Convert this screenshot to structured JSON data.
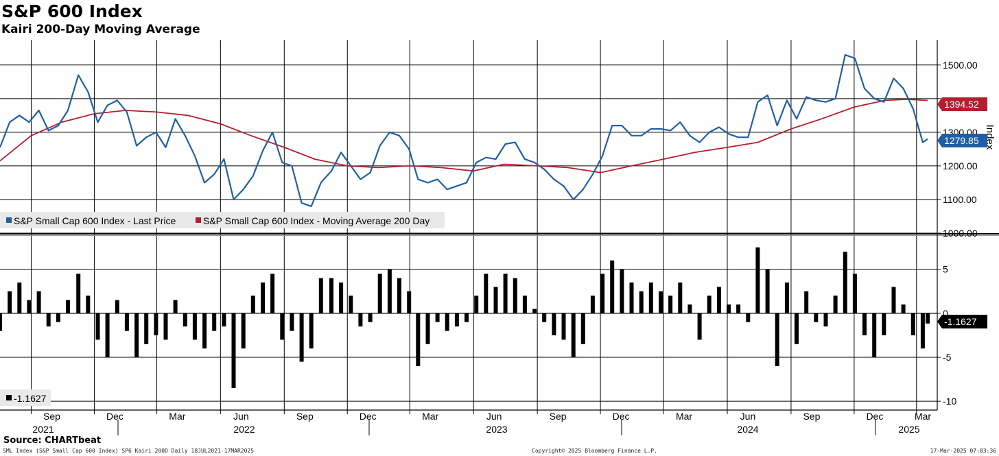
{
  "title": "S&P 600 Index",
  "subtitle": "Kairi 200-Day Moving Average",
  "source": "Source: CHARTbeat",
  "footer": {
    "left": "SML Index (S&P Small Cap 600 Index) SP6 Kairi 200D  Daily 18JUL2021-17MAR2025",
    "center": "Copyright© 2025 Bloomberg Finance L.P.",
    "right": "17-Mar-2025 07:03:36"
  },
  "colors": {
    "price": "#1f5fa3",
    "ma": "#b41e2e",
    "kairi": "#000000",
    "grid": "#000000"
  },
  "chart_data": [
    {
      "type": "line",
      "ylabel": "Index",
      "ylim": [
        1000,
        1575
      ],
      "yticks": [
        1000,
        1100,
        1200,
        1300,
        1400,
        1500
      ],
      "ytick_labels": [
        "1000.00",
        "1100.00",
        "1200.00",
        "1300.00",
        "",
        "1500.00"
      ],
      "grid": true,
      "legend_position": "bottom-left",
      "x_start": "2021-07-18",
      "x_end": "2025-03-17",
      "x_month_ticks": [
        "Sep",
        "Dec",
        "Mar",
        "Jun",
        "Sep",
        "Dec",
        "Mar",
        "Jun",
        "Sep",
        "Dec",
        "Mar",
        "Jun",
        "Sep",
        "Dec",
        "Mar"
      ],
      "x_year_labels": [
        "2021",
        "2022",
        "2023",
        "2024",
        "2025"
      ],
      "series": [
        {
          "name": "S&P Small Cap 600 Index - Last Price",
          "last_value_label": "1279.85",
          "points": [
            [
              "2021-07-18",
              1255
            ],
            [
              "2021-08-01",
              1330
            ],
            [
              "2021-08-15",
              1350
            ],
            [
              "2021-08-29",
              1330
            ],
            [
              "2021-09-12",
              1365
            ],
            [
              "2021-09-26",
              1305
            ],
            [
              "2021-10-10",
              1320
            ],
            [
              "2021-10-24",
              1365
            ],
            [
              "2021-11-08",
              1470
            ],
            [
              "2021-11-22",
              1420
            ],
            [
              "2021-12-06",
              1330
            ],
            [
              "2021-12-20",
              1380
            ],
            [
              "2022-01-03",
              1395
            ],
            [
              "2022-01-17",
              1360
            ],
            [
              "2022-01-31",
              1260
            ],
            [
              "2022-02-14",
              1285
            ],
            [
              "2022-02-28",
              1300
            ],
            [
              "2022-03-14",
              1255
            ],
            [
              "2022-03-28",
              1340
            ],
            [
              "2022-04-11",
              1290
            ],
            [
              "2022-04-25",
              1230
            ],
            [
              "2022-05-09",
              1150
            ],
            [
              "2022-05-23",
              1175
            ],
            [
              "2022-06-06",
              1220
            ],
            [
              "2022-06-20",
              1100
            ],
            [
              "2022-07-04",
              1130
            ],
            [
              "2022-07-18",
              1170
            ],
            [
              "2022-08-01",
              1245
            ],
            [
              "2022-08-15",
              1300
            ],
            [
              "2022-08-29",
              1210
            ],
            [
              "2022-09-12",
              1200
            ],
            [
              "2022-09-26",
              1090
            ],
            [
              "2022-10-10",
              1080
            ],
            [
              "2022-10-24",
              1150
            ],
            [
              "2022-11-08",
              1185
            ],
            [
              "2022-11-22",
              1240
            ],
            [
              "2022-12-06",
              1200
            ],
            [
              "2022-12-20",
              1160
            ],
            [
              "2023-01-03",
              1180
            ],
            [
              "2023-01-17",
              1260
            ],
            [
              "2023-01-31",
              1300
            ],
            [
              "2023-02-14",
              1290
            ],
            [
              "2023-02-28",
              1250
            ],
            [
              "2023-03-13",
              1160
            ],
            [
              "2023-03-27",
              1150
            ],
            [
              "2023-04-10",
              1160
            ],
            [
              "2023-04-24",
              1130
            ],
            [
              "2023-05-08",
              1140
            ],
            [
              "2023-05-22",
              1150
            ],
            [
              "2023-06-05",
              1210
            ],
            [
              "2023-06-19",
              1225
            ],
            [
              "2023-07-03",
              1220
            ],
            [
              "2023-07-17",
              1265
            ],
            [
              "2023-07-31",
              1270
            ],
            [
              "2023-08-14",
              1220
            ],
            [
              "2023-08-28",
              1210
            ],
            [
              "2023-09-11",
              1190
            ],
            [
              "2023-09-25",
              1160
            ],
            [
              "2023-10-09",
              1140
            ],
            [
              "2023-10-23",
              1100
            ],
            [
              "2023-11-06",
              1130
            ],
            [
              "2023-11-20",
              1175
            ],
            [
              "2023-12-04",
              1230
            ],
            [
              "2023-12-18",
              1320
            ],
            [
              "2024-01-01",
              1320
            ],
            [
              "2024-01-15",
              1290
            ],
            [
              "2024-01-29",
              1290
            ],
            [
              "2024-02-12",
              1310
            ],
            [
              "2024-02-26",
              1310
            ],
            [
              "2024-03-11",
              1305
            ],
            [
              "2024-03-25",
              1330
            ],
            [
              "2024-04-08",
              1290
            ],
            [
              "2024-04-22",
              1270
            ],
            [
              "2024-05-06",
              1300
            ],
            [
              "2024-05-20",
              1315
            ],
            [
              "2024-06-03",
              1295
            ],
            [
              "2024-06-17",
              1285
            ],
            [
              "2024-07-01",
              1285
            ],
            [
              "2024-07-15",
              1390
            ],
            [
              "2024-07-29",
              1410
            ],
            [
              "2024-08-12",
              1320
            ],
            [
              "2024-08-26",
              1395
            ],
            [
              "2024-09-09",
              1340
            ],
            [
              "2024-09-23",
              1405
            ],
            [
              "2024-10-07",
              1395
            ],
            [
              "2024-10-21",
              1390
            ],
            [
              "2024-11-04",
              1400
            ],
            [
              "2024-11-18",
              1530
            ],
            [
              "2024-12-02",
              1520
            ],
            [
              "2024-12-16",
              1430
            ],
            [
              "2024-12-30",
              1400
            ],
            [
              "2025-01-13",
              1390
            ],
            [
              "2025-01-27",
              1460
            ],
            [
              "2025-02-10",
              1430
            ],
            [
              "2025-02-24",
              1370
            ],
            [
              "2025-03-10",
              1270
            ],
            [
              "2025-03-17",
              1279.85
            ]
          ]
        },
        {
          "name": "S&P Small Cap 600 Index - Moving Average 200 Day",
          "last_value_label": "1394.52",
          "points": [
            [
              "2021-07-18",
              1215
            ],
            [
              "2021-09-01",
              1290
            ],
            [
              "2021-10-15",
              1330
            ],
            [
              "2021-12-01",
              1355
            ],
            [
              "2022-01-15",
              1365
            ],
            [
              "2022-03-01",
              1360
            ],
            [
              "2022-04-15",
              1350
            ],
            [
              "2022-06-01",
              1325
            ],
            [
              "2022-07-15",
              1290
            ],
            [
              "2022-09-01",
              1255
            ],
            [
              "2022-10-15",
              1220
            ],
            [
              "2022-12-01",
              1200
            ],
            [
              "2023-01-15",
              1195
            ],
            [
              "2023-03-01",
              1200
            ],
            [
              "2023-04-15",
              1195
            ],
            [
              "2023-06-01",
              1185
            ],
            [
              "2023-07-15",
              1205
            ],
            [
              "2023-09-01",
              1200
            ],
            [
              "2023-10-15",
              1195
            ],
            [
              "2023-12-01",
              1180
            ],
            [
              "2024-01-15",
              1200
            ],
            [
              "2024-03-01",
              1220
            ],
            [
              "2024-04-15",
              1240
            ],
            [
              "2024-06-01",
              1255
            ],
            [
              "2024-07-15",
              1270
            ],
            [
              "2024-09-01",
              1310
            ],
            [
              "2024-10-15",
              1340
            ],
            [
              "2024-12-01",
              1375
            ],
            [
              "2025-01-15",
              1395
            ],
            [
              "2025-02-15",
              1398
            ],
            [
              "2025-03-17",
              1394.52
            ]
          ]
        }
      ]
    },
    {
      "type": "bar",
      "ylim": [
        -11,
        8.8
      ],
      "yticks": [
        -10,
        -5,
        0,
        5
      ],
      "ytick_labels": [
        "-10",
        "-5",
        "0",
        "5"
      ],
      "grid": true,
      "legend_position": "bottom-left",
      "series": [
        {
          "name": "-1.1627",
          "last_value_label": "-1.1627",
          "points": [
            [
              "2021-07-18",
              -2.0
            ],
            [
              "2021-08-01",
              2.5
            ],
            [
              "2021-08-15",
              3.5
            ],
            [
              "2021-08-29",
              1.5
            ],
            [
              "2021-09-12",
              2.5
            ],
            [
              "2021-09-26",
              -1.5
            ],
            [
              "2021-10-10",
              -1.0
            ],
            [
              "2021-10-24",
              1.5
            ],
            [
              "2021-11-08",
              4.5
            ],
            [
              "2021-11-22",
              2.0
            ],
            [
              "2021-12-06",
              -3.0
            ],
            [
              "2021-12-20",
              -5.0
            ],
            [
              "2022-01-03",
              1.5
            ],
            [
              "2022-01-17",
              -2.0
            ],
            [
              "2022-01-31",
              -5.0
            ],
            [
              "2022-02-14",
              -3.5
            ],
            [
              "2022-02-28",
              -2.5
            ],
            [
              "2022-03-14",
              -3.0
            ],
            [
              "2022-03-28",
              1.5
            ],
            [
              "2022-04-11",
              -1.5
            ],
            [
              "2022-04-25",
              -3.0
            ],
            [
              "2022-05-09",
              -4.0
            ],
            [
              "2022-05-23",
              -2.0
            ],
            [
              "2022-06-06",
              -1.5
            ],
            [
              "2022-06-20",
              -8.5
            ],
            [
              "2022-07-04",
              -4.0
            ],
            [
              "2022-07-18",
              2.0
            ],
            [
              "2022-08-01",
              3.5
            ],
            [
              "2022-08-15",
              4.5
            ],
            [
              "2022-08-29",
              -3.0
            ],
            [
              "2022-09-12",
              -2.0
            ],
            [
              "2022-09-26",
              -5.5
            ],
            [
              "2022-10-10",
              -4.0
            ],
            [
              "2022-10-24",
              4.0
            ],
            [
              "2022-11-08",
              4.0
            ],
            [
              "2022-11-22",
              3.5
            ],
            [
              "2022-12-06",
              2.0
            ],
            [
              "2022-12-20",
              -1.5
            ],
            [
              "2023-01-03",
              -1.0
            ],
            [
              "2023-01-17",
              4.5
            ],
            [
              "2023-01-31",
              5.0
            ],
            [
              "2023-02-14",
              4.0
            ],
            [
              "2023-02-28",
              2.5
            ],
            [
              "2023-03-13",
              -6.0
            ],
            [
              "2023-03-27",
              -3.5
            ],
            [
              "2023-04-10",
              -1.0
            ],
            [
              "2023-04-24",
              -2.0
            ],
            [
              "2023-05-08",
              -1.5
            ],
            [
              "2023-05-22",
              -1.0
            ],
            [
              "2023-06-05",
              2.0
            ],
            [
              "2023-06-19",
              4.5
            ],
            [
              "2023-07-03",
              3.0
            ],
            [
              "2023-07-17",
              4.5
            ],
            [
              "2023-07-31",
              4.0
            ],
            [
              "2023-08-14",
              2.0
            ],
            [
              "2023-08-28",
              0.5
            ],
            [
              "2023-09-11",
              -1.0
            ],
            [
              "2023-09-25",
              -2.5
            ],
            [
              "2023-10-09",
              -3.0
            ],
            [
              "2023-10-23",
              -5.0
            ],
            [
              "2023-11-06",
              -3.5
            ],
            [
              "2023-11-20",
              2.0
            ],
            [
              "2023-12-04",
              4.5
            ],
            [
              "2023-12-18",
              6.0
            ],
            [
              "2024-01-01",
              5.0
            ],
            [
              "2024-01-15",
              3.5
            ],
            [
              "2024-01-29",
              2.5
            ],
            [
              "2024-02-12",
              3.5
            ],
            [
              "2024-02-26",
              2.5
            ],
            [
              "2024-03-11",
              2.0
            ],
            [
              "2024-03-25",
              3.5
            ],
            [
              "2024-04-08",
              1.0
            ],
            [
              "2024-04-22",
              -3.0
            ],
            [
              "2024-05-06",
              2.0
            ],
            [
              "2024-05-20",
              3.0
            ],
            [
              "2024-06-03",
              1.0
            ],
            [
              "2024-06-17",
              1.0
            ],
            [
              "2024-07-01",
              -1.0
            ],
            [
              "2024-07-15",
              7.5
            ],
            [
              "2024-07-29",
              5.0
            ],
            [
              "2024-08-12",
              -6.0
            ],
            [
              "2024-08-26",
              3.5
            ],
            [
              "2024-09-09",
              -3.5
            ],
            [
              "2024-09-23",
              2.5
            ],
            [
              "2024-10-07",
              -1.0
            ],
            [
              "2024-10-21",
              -1.5
            ],
            [
              "2024-11-04",
              2.0
            ],
            [
              "2024-11-18",
              7.0
            ],
            [
              "2024-12-02",
              4.5
            ],
            [
              "2024-12-16",
              -2.5
            ],
            [
              "2024-12-30",
              -5.0
            ],
            [
              "2025-01-13",
              -2.5
            ],
            [
              "2025-01-27",
              3.0
            ],
            [
              "2025-02-10",
              1.0
            ],
            [
              "2025-02-24",
              -2.5
            ],
            [
              "2025-03-10",
              -4.0
            ],
            [
              "2025-03-17",
              -1.1627
            ]
          ]
        }
      ]
    }
  ]
}
